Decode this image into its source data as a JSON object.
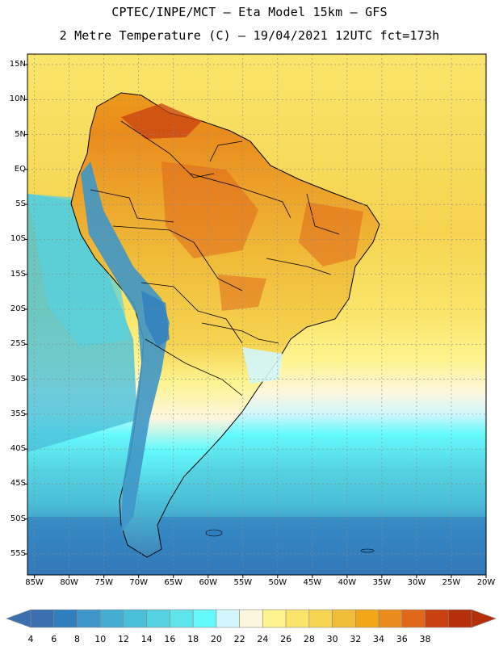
{
  "header": {
    "title_line1": "CPTEC/INPE/MCT –  Eta Model 15km – GFS",
    "title_line2": "2 Metre Temperature (C) – 19/04/2021 12UTC fct=173h"
  },
  "map": {
    "lat_labels": [
      "15N",
      "10N",
      "5N",
      "EQ",
      "5S",
      "10S",
      "15S",
      "20S",
      "25S",
      "30S",
      "35S",
      "40S",
      "45S",
      "50S",
      "55S"
    ],
    "lon_labels": [
      "85W",
      "80W",
      "75W",
      "70W",
      "65W",
      "60W",
      "55W",
      "50W",
      "45W",
      "40W",
      "35W",
      "30W",
      "25W",
      "20W"
    ],
    "lat_range": [
      -58,
      16.5
    ],
    "lon_range": [
      -86,
      -20
    ]
  },
  "colorbar": {
    "labels": [
      "4",
      "6",
      "8",
      "10",
      "12",
      "14",
      "16",
      "18",
      "20",
      "22",
      "24",
      "26",
      "28",
      "30",
      "32",
      "34",
      "36",
      "38"
    ],
    "colors": [
      "#3a6fb0",
      "#2f7fbf",
      "#3f96c8",
      "#45acd2",
      "#4ac0d8",
      "#55d2e0",
      "#5ee4ea",
      "#64fafc",
      "#d2f6fb",
      "#fdf6df",
      "#fdf490",
      "#fae56a",
      "#f6d450",
      "#f0bd3a",
      "#f0a818",
      "#e98c1c",
      "#e0681a",
      "#c84010",
      "#b42f0a"
    ],
    "low_arrow_color": "#3a6fb0",
    "high_arrow_color": "#b42f0a"
  }
}
